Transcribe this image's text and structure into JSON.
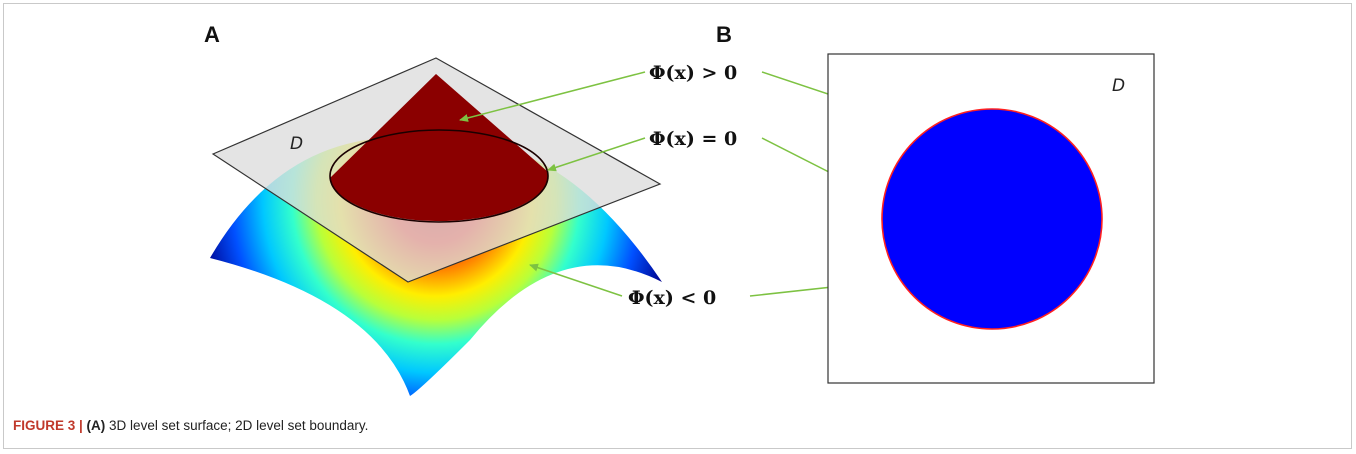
{
  "figure": {
    "panel_a_letter": "A",
    "panel_b_letter": "B",
    "domain_label_a": "D",
    "domain_label_b": "D",
    "phi_positive": "Φ(x) > 0",
    "phi_zero": "Φ(x) = 0",
    "phi_negative": "Φ(x) < 0",
    "colors": {
      "arrow": "#7dc242",
      "disk_fill": "#0000ff",
      "disk_edge": "#ff2020",
      "peak": "#8b0000",
      "plane": "#dcdcdc"
    }
  },
  "caption": {
    "label": "FIGURE 3 | ",
    "panel_ref": "(A)",
    "text": " 3D level set surface; 2D level set boundary."
  }
}
